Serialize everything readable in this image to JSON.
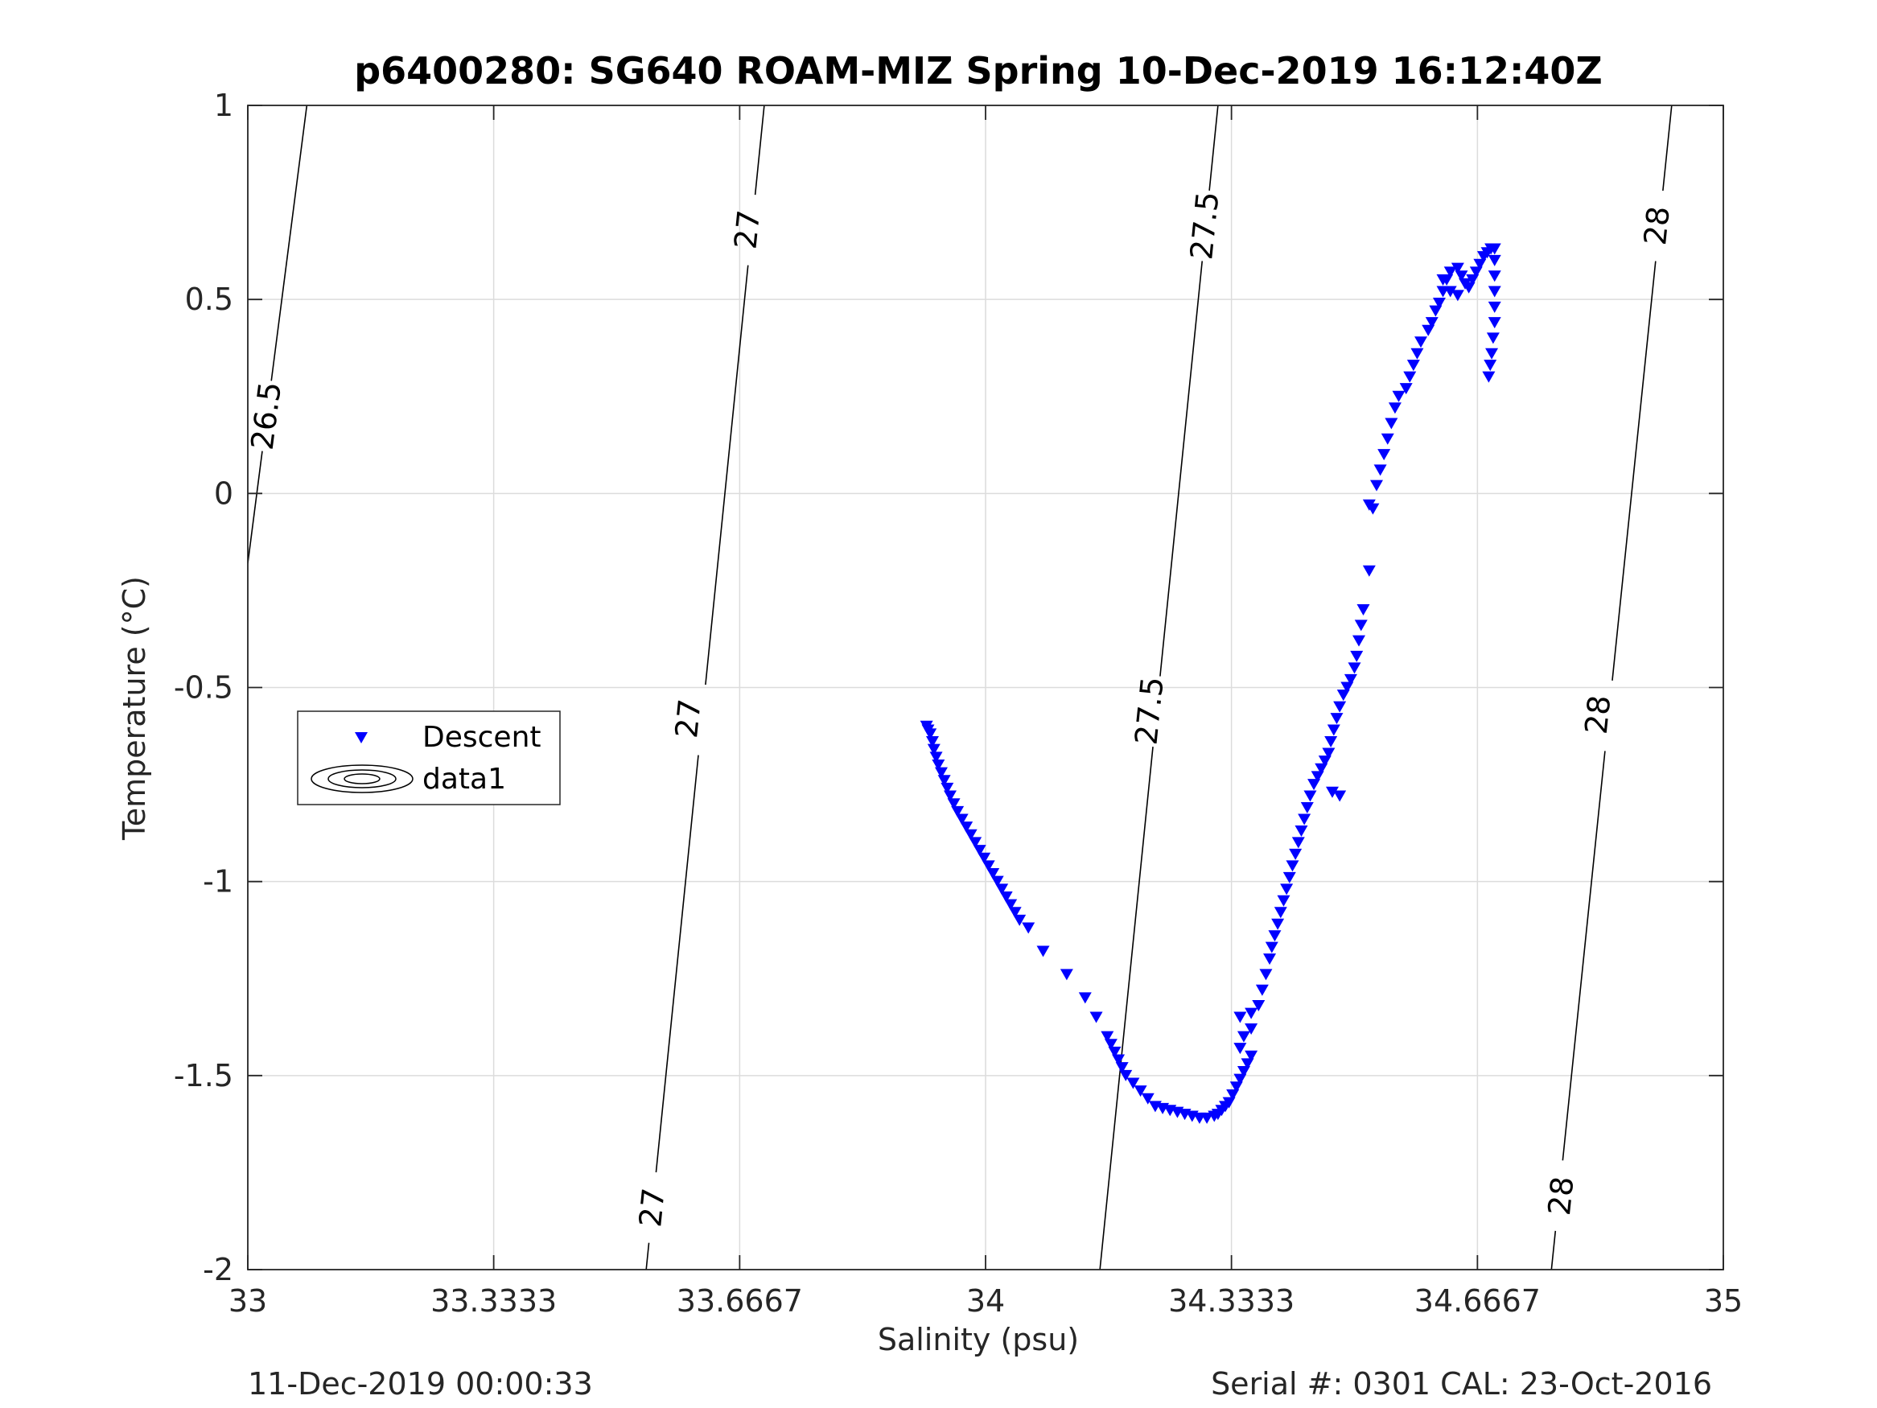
{
  "chart_data": {
    "type": "scatter",
    "title": "p6400280: SG640 ROAM-MIZ Spring 10-Dec-2019 16:12:40Z",
    "xlabel": "Salinity (psu)",
    "ylabel": "Temperature (°C)",
    "xlim": [
      33,
      35
    ],
    "ylim": [
      -2,
      1
    ],
    "xticks": [
      33,
      33.3333,
      33.6667,
      34,
      34.3333,
      34.6667,
      35
    ],
    "xtick_labels": [
      "33",
      "33.3333",
      "33.6667",
      "34",
      "34.3333",
      "34.6667",
      "35"
    ],
    "yticks": [
      -2,
      -1.5,
      -1,
      -0.5,
      0,
      0.5,
      1
    ],
    "ytick_labels": [
      "-2",
      "-1.5",
      "-1",
      "-0.5",
      "0",
      "0.5",
      "1"
    ],
    "grid": true,
    "legend": {
      "placement": "middle-left",
      "entries": [
        {
          "label": "Descent",
          "marker": "triangle-down",
          "color": "#0000ff"
        },
        {
          "label": "data1",
          "marker": "contour",
          "color": "#000000"
        }
      ]
    },
    "isopycnals": [
      {
        "level": "26.5",
        "points": [
          [
            33.0,
            -0.18
          ],
          [
            33.08,
            1.0
          ]
        ],
        "labels": [
          {
            "x": 33.025,
            "y": 0.2
          }
        ]
      },
      {
        "level": "27",
        "points": [
          [
            33.54,
            -2.0
          ],
          [
            33.7,
            1.0
          ]
        ],
        "labels": [
          {
            "x": 33.548,
            "y": -1.84
          },
          {
            "x": 33.597,
            "y": -0.58
          },
          {
            "x": 33.677,
            "y": 0.68
          }
        ]
      },
      {
        "level": "27.5",
        "points": [
          [
            34.155,
            -2.0
          ],
          [
            34.315,
            1.0
          ]
        ],
        "labels": [
          {
            "x": 34.222,
            "y": -0.56
          },
          {
            "x": 34.297,
            "y": 0.69
          }
        ]
      },
      {
        "level": "28",
        "points": [
          [
            34.767,
            -2.0
          ],
          [
            34.93,
            1.0
          ]
        ],
        "labels": [
          {
            "x": 34.78,
            "y": -1.81
          },
          {
            "x": 34.83,
            "y": -0.57
          },
          {
            "x": 34.91,
            "y": 0.69
          }
        ]
      }
    ],
    "series": [
      {
        "name": "Descent",
        "color": "#0000ff",
        "marker": "triangle-down",
        "points": [
          [
            33.92,
            -0.6
          ],
          [
            33.922,
            -0.61
          ],
          [
            33.925,
            -0.62
          ],
          [
            33.928,
            -0.64
          ],
          [
            33.93,
            -0.66
          ],
          [
            33.933,
            -0.68
          ],
          [
            33.936,
            -0.7
          ],
          [
            33.94,
            -0.72
          ],
          [
            33.944,
            -0.74
          ],
          [
            33.948,
            -0.76
          ],
          [
            33.952,
            -0.78
          ],
          [
            33.957,
            -0.8
          ],
          [
            33.962,
            -0.82
          ],
          [
            33.968,
            -0.84
          ],
          [
            33.974,
            -0.86
          ],
          [
            33.98,
            -0.88
          ],
          [
            33.986,
            -0.9
          ],
          [
            33.992,
            -0.92
          ],
          [
            33.998,
            -0.94
          ],
          [
            34.004,
            -0.96
          ],
          [
            34.01,
            -0.98
          ],
          [
            34.016,
            -1.0
          ],
          [
            34.022,
            -1.02
          ],
          [
            34.028,
            -1.04
          ],
          [
            34.034,
            -1.06
          ],
          [
            34.04,
            -1.08
          ],
          [
            34.046,
            -1.1
          ],
          [
            34.058,
            -1.12
          ],
          [
            34.078,
            -1.18
          ],
          [
            34.11,
            -1.24
          ],
          [
            34.135,
            -1.3
          ],
          [
            34.15,
            -1.35
          ],
          [
            34.165,
            -1.4
          ],
          [
            34.17,
            -1.42
          ],
          [
            34.175,
            -1.44
          ],
          [
            34.18,
            -1.46
          ],
          [
            34.185,
            -1.48
          ],
          [
            34.19,
            -1.5
          ],
          [
            34.2,
            -1.52
          ],
          [
            34.21,
            -1.54
          ],
          [
            34.22,
            -1.56
          ],
          [
            34.23,
            -1.58
          ],
          [
            34.24,
            -1.585
          ],
          [
            34.25,
            -1.59
          ],
          [
            34.26,
            -1.595
          ],
          [
            34.27,
            -1.6
          ],
          [
            34.28,
            -1.605
          ],
          [
            34.29,
            -1.61
          ],
          [
            34.3,
            -1.61
          ],
          [
            34.31,
            -1.605
          ],
          [
            34.315,
            -1.6
          ],
          [
            34.32,
            -1.59
          ],
          [
            34.325,
            -1.58
          ],
          [
            34.33,
            -1.57
          ],
          [
            34.335,
            -1.55
          ],
          [
            34.34,
            -1.53
          ],
          [
            34.345,
            -1.51
          ],
          [
            34.35,
            -1.49
          ],
          [
            34.355,
            -1.47
          ],
          [
            34.36,
            -1.45
          ],
          [
            34.345,
            -1.43
          ],
          [
            34.35,
            -1.4
          ],
          [
            34.36,
            -1.38
          ],
          [
            34.345,
            -1.35
          ],
          [
            34.36,
            -1.34
          ],
          [
            34.37,
            -1.32
          ],
          [
            34.375,
            -1.28
          ],
          [
            34.38,
            -1.24
          ],
          [
            34.385,
            -1.2
          ],
          [
            34.388,
            -1.17
          ],
          [
            34.392,
            -1.14
          ],
          [
            34.396,
            -1.11
          ],
          [
            34.4,
            -1.08
          ],
          [
            34.404,
            -1.05
          ],
          [
            34.408,
            -1.02
          ],
          [
            34.412,
            -0.99
          ],
          [
            34.416,
            -0.96
          ],
          [
            34.42,
            -0.93
          ],
          [
            34.424,
            -0.9
          ],
          [
            34.428,
            -0.87
          ],
          [
            34.432,
            -0.84
          ],
          [
            34.436,
            -0.81
          ],
          [
            34.44,
            -0.78
          ],
          [
            34.445,
            -0.75
          ],
          [
            34.45,
            -0.73
          ],
          [
            34.455,
            -0.71
          ],
          [
            34.46,
            -0.69
          ],
          [
            34.465,
            -0.67
          ],
          [
            34.468,
            -0.64
          ],
          [
            34.472,
            -0.61
          ],
          [
            34.476,
            -0.58
          ],
          [
            34.48,
            -0.55
          ],
          [
            34.485,
            -0.52
          ],
          [
            34.49,
            -0.5
          ],
          [
            34.495,
            -0.48
          ],
          [
            34.5,
            -0.45
          ],
          [
            34.503,
            -0.42
          ],
          [
            34.506,
            -0.38
          ],
          [
            34.509,
            -0.34
          ],
          [
            34.512,
            -0.3
          ],
          [
            34.47,
            -0.77
          ],
          [
            34.48,
            -0.78
          ],
          [
            34.52,
            -0.2
          ],
          [
            34.52,
            -0.03
          ],
          [
            34.525,
            -0.04
          ],
          [
            34.53,
            0.02
          ],
          [
            34.535,
            0.06
          ],
          [
            34.54,
            0.1
          ],
          [
            34.545,
            0.14
          ],
          [
            34.55,
            0.18
          ],
          [
            34.555,
            0.22
          ],
          [
            34.56,
            0.25
          ],
          [
            34.57,
            0.27
          ],
          [
            34.575,
            0.3
          ],
          [
            34.58,
            0.33
          ],
          [
            34.585,
            0.36
          ],
          [
            34.59,
            0.39
          ],
          [
            34.6,
            0.42
          ],
          [
            34.605,
            0.44
          ],
          [
            34.61,
            0.47
          ],
          [
            34.615,
            0.49
          ],
          [
            34.62,
            0.52
          ],
          [
            34.625,
            0.55
          ],
          [
            34.63,
            0.57
          ],
          [
            34.64,
            0.58
          ],
          [
            34.645,
            0.56
          ],
          [
            34.65,
            0.54
          ],
          [
            34.655,
            0.53
          ],
          [
            34.66,
            0.55
          ],
          [
            34.665,
            0.57
          ],
          [
            34.67,
            0.59
          ],
          [
            34.675,
            0.61
          ],
          [
            34.68,
            0.62
          ],
          [
            34.685,
            0.63
          ],
          [
            34.69,
            0.63
          ],
          [
            34.69,
            0.6
          ],
          [
            34.69,
            0.56
          ],
          [
            34.69,
            0.52
          ],
          [
            34.69,
            0.48
          ],
          [
            34.69,
            0.44
          ],
          [
            34.688,
            0.4
          ],
          [
            34.686,
            0.36
          ],
          [
            34.684,
            0.33
          ],
          [
            34.682,
            0.3
          ],
          [
            34.63,
            0.52
          ],
          [
            34.62,
            0.55
          ],
          [
            34.64,
            0.51
          ]
        ]
      }
    ]
  },
  "footer": {
    "timestamp": "11-Dec-2019 00:00:33",
    "serial_cal": "Serial #: 0301  CAL: 23-Oct-2016"
  }
}
